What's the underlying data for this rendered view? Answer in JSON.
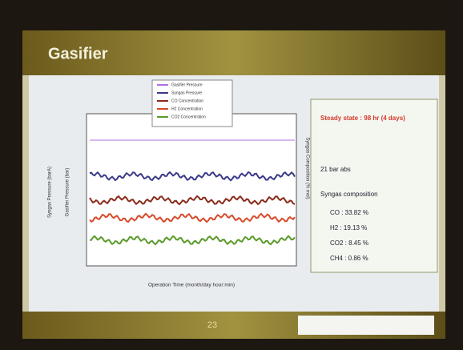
{
  "slide": {
    "title": "Gasifier",
    "page_number": "23",
    "chart": {
      "legend": [
        "Gasifier Pressure",
        "Syngas Pressure",
        "CO Concentration",
        "H2 Concentration",
        "CO2 Concentration"
      ],
      "y_left_outer_label": "Syngas Pressure (barA)",
      "y_left_inner_label": "Gasifier Pressure (bar)",
      "y_right_label": "Syngas Composition (% mol)",
      "x_label": "Operation Time (month/day hour:min)"
    },
    "summary": {
      "steady_state": "Steady state : 98 hr (4 days)",
      "pressure": "21 bar abs",
      "composition_title": "Syngas composition",
      "items": [
        "CO : 33.82 %",
        "H2 : 19.13 %",
        "CO2 : 8.45 %",
        "CH4 : 0.86 %"
      ]
    }
  }
}
